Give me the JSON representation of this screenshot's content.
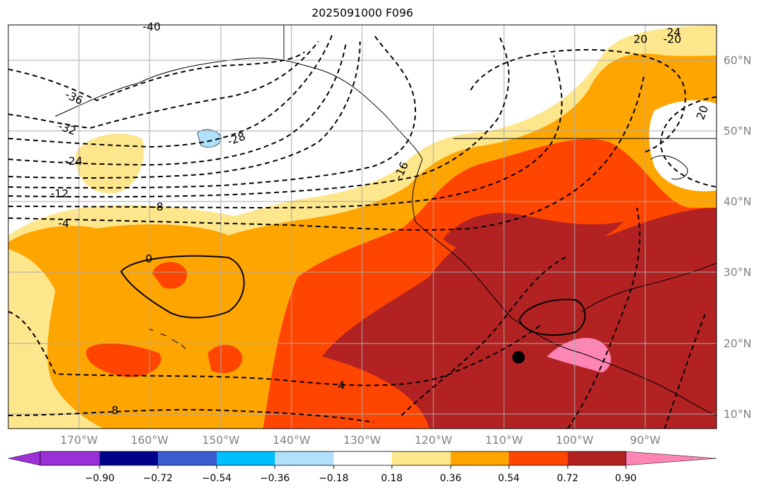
{
  "title": "2025091000 F096",
  "map": {
    "lon_labels": [
      "170°W",
      "160°W",
      "150°W",
      "140°W",
      "130°W",
      "120°W",
      "110°W",
      "100°W",
      "90°W"
    ],
    "lat_labels": [
      "60°N",
      "50°N",
      "40°N",
      "30°N",
      "20°N",
      "10°N"
    ],
    "contour_labels": [
      "-40",
      "-36",
      "-32",
      "-28",
      "-24",
      "-20",
      "-16",
      "-12",
      "-8",
      "-4",
      "0",
      "4",
      "8",
      "20",
      "24",
      "20"
    ],
    "marker": "black-dot"
  },
  "colorbar": {
    "ticks": [
      "−0.90",
      "−0.72",
      "−0.54",
      "−0.36",
      "−0.18",
      "0.18",
      "0.36",
      "0.54",
      "0.72",
      "0.90"
    ],
    "colors": [
      "#9b30d6",
      "#00008b",
      "#3a5bd0",
      "#00bfff",
      "#b0e0fb",
      "#ffffff",
      "#fde68c",
      "#ffa500",
      "#ff4500",
      "#b22222",
      "#ff85b4"
    ]
  }
}
